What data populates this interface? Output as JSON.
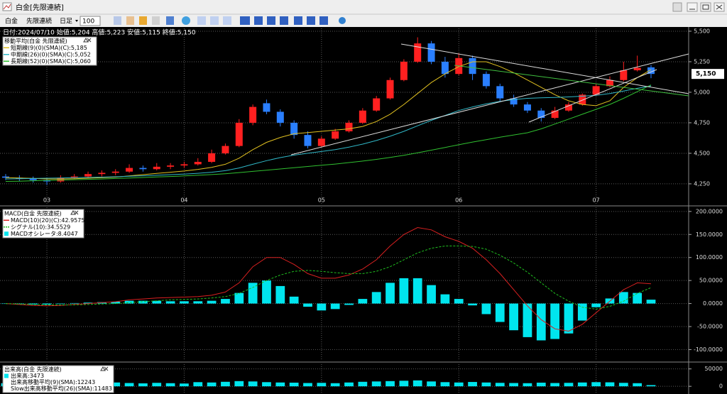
{
  "window": {
    "title": "白金[先限連続]"
  },
  "toolbar": {
    "symbol": "白金",
    "contract": "先限連続",
    "period": "日足",
    "count": "100"
  },
  "chart_data": [
    {
      "type": "candlestick",
      "header": "日付:2024/07/10 始値:5,204 高値:5,223 安値:5,115 終値:5,150",
      "title": "移動平均(白金 先限連続)",
      "categories": [
        null,
        null,
        null,
        "03",
        null,
        null,
        null,
        null,
        null,
        null,
        null,
        null,
        null,
        "04",
        null,
        null,
        null,
        null,
        null,
        null,
        null,
        null,
        null,
        "05",
        null,
        null,
        null,
        null,
        null,
        null,
        null,
        null,
        null,
        "06",
        null,
        null,
        null,
        null,
        null,
        null,
        null,
        null,
        null,
        "07",
        null,
        null,
        null,
        null
      ],
      "candles": [
        [
          4310,
          4330,
          4280,
          4300
        ],
        [
          4300,
          4320,
          4270,
          4290
        ],
        [
          4290,
          4310,
          4260,
          4280
        ],
        [
          4280,
          4300,
          4240,
          4270
        ],
        [
          4270,
          4320,
          4260,
          4300
        ],
        [
          4300,
          4330,
          4290,
          4310
        ],
        [
          4310,
          4350,
          4300,
          4330
        ],
        [
          4330,
          4360,
          4310,
          4340
        ],
        [
          4340,
          4370,
          4320,
          4350
        ],
        [
          4350,
          4410,
          4340,
          4380
        ],
        [
          4380,
          4400,
          4350,
          4370
        ],
        [
          4370,
          4420,
          4360,
          4390
        ],
        [
          4390,
          4420,
          4370,
          4400
        ],
        [
          4400,
          4430,
          4380,
          4410
        ],
        [
          4410,
          4460,
          4400,
          4430
        ],
        [
          4430,
          4530,
          4420,
          4500
        ],
        [
          4500,
          4580,
          4490,
          4560
        ],
        [
          4560,
          4780,
          4550,
          4750
        ],
        [
          4750,
          4900,
          4730,
          4880
        ],
        [
          4910,
          4940,
          4820,
          4840
        ],
        [
          4840,
          4860,
          4720,
          4750
        ],
        [
          4750,
          4770,
          4620,
          4650
        ],
        [
          4650,
          4680,
          4540,
          4560
        ],
        [
          4560,
          4640,
          4550,
          4620
        ],
        [
          4620,
          4700,
          4610,
          4680
        ],
        [
          4680,
          4770,
          4670,
          4750
        ],
        [
          4750,
          4870,
          4740,
          4850
        ],
        [
          4850,
          4970,
          4840,
          4950
        ],
        [
          4950,
          5120,
          4940,
          5100
        ],
        [
          5100,
          5270,
          5090,
          5250
        ],
        [
          5250,
          5450,
          5240,
          5400
        ],
        [
          5400,
          5420,
          5230,
          5250
        ],
        [
          5250,
          5290,
          5120,
          5150
        ],
        [
          5150,
          5320,
          5140,
          5280
        ],
        [
          5280,
          5300,
          5100,
          5150
        ],
        [
          5150,
          5170,
          5030,
          5050
        ],
        [
          5050,
          5070,
          4930,
          4950
        ],
        [
          4950,
          4980,
          4880,
          4900
        ],
        [
          4900,
          4920,
          4830,
          4850
        ],
        [
          4850,
          4870,
          4760,
          4790
        ],
        [
          4790,
          4880,
          4780,
          4850
        ],
        [
          4850,
          4920,
          4840,
          4900
        ],
        [
          4900,
          4990,
          4890,
          4980
        ],
        [
          4980,
          5070,
          4970,
          5050
        ],
        [
          5050,
          5130,
          5040,
          5100
        ],
        [
          5100,
          5250,
          5090,
          5180
        ],
        [
          5180,
          5300,
          5170,
          5200
        ],
        [
          5204,
          5223,
          5115,
          5150
        ]
      ],
      "up_color": "#ff2020",
      "down_color": "#2a7fff",
      "series": [
        {
          "name": "短期線(9)(0)(SMA)(C):5,185",
          "color": "#e0c020",
          "values": [
            4300,
            4298,
            4295,
            4290,
            4290,
            4292,
            4296,
            4300,
            4305,
            4315,
            4325,
            4335,
            4345,
            4355,
            4368,
            4385,
            4410,
            4460,
            4530,
            4590,
            4630,
            4660,
            4670,
            4680,
            4690,
            4700,
            4720,
            4760,
            4820,
            4900,
            4990,
            5080,
            5150,
            5210,
            5250,
            5250,
            5210,
            5160,
            5100,
            5040,
            4980,
            4930,
            4900,
            4890,
            4930,
            5040,
            5120,
            5185
          ]
        },
        {
          "name": "中期線(26)(0)(SMA)(C):5,052",
          "color": "#30b8c8",
          "values": [
            4290,
            4292,
            4294,
            4296,
            4298,
            4300,
            4302,
            4305,
            4308,
            4312,
            4316,
            4320,
            4325,
            4330,
            4336,
            4345,
            4358,
            4380,
            4410,
            4440,
            4465,
            4485,
            4500,
            4515,
            4530,
            4550,
            4575,
            4605,
            4640,
            4680,
            4725,
            4770,
            4810,
            4850,
            4880,
            4905,
            4925,
            4940,
            4950,
            4955,
            4958,
            4962,
            4968,
            4975,
            4990,
            5010,
            5032,
            5052
          ]
        },
        {
          "name": "長期線(52)(0)(SMA)(C):5,060",
          "color": "#30c030",
          "values": [
            4270,
            4272,
            4275,
            4278,
            4281,
            4284,
            4287,
            4290,
            4294,
            4298,
            4302,
            4306,
            4310,
            4315,
            4320,
            4326,
            4333,
            4342,
            4352,
            4362,
            4372,
            4382,
            4392,
            4402,
            4412,
            4424,
            4436,
            4450,
            4466,
            4484,
            4504,
            4526,
            4548,
            4570,
            4592,
            4612,
            4632,
            4650,
            4668,
            4700,
            4740,
            4780,
            4820,
            4860,
            4900,
            4950,
            5005,
            5060
          ]
        }
      ],
      "ylim": [
        4081,
        5523
      ],
      "yticks": [
        {
          "value": 5500,
          "label": "5,500"
        },
        {
          "value": 5250,
          "label": "5,250"
        },
        {
          "value": 5000,
          "label": "5,000"
        },
        {
          "value": 4750,
          "label": "4,750"
        },
        {
          "value": 4500,
          "label": "4,500"
        },
        {
          "value": 4250,
          "label": "4,250"
        }
      ],
      "last_price": {
        "value": 5150,
        "label": "5,150"
      },
      "grid": true
    },
    {
      "type": "macd",
      "title": "MACD(白金 先限連続)",
      "series": [
        {
          "name": "MACD(10)(20)(C):42.9575",
          "color": "#d82020",
          "style": "line",
          "values": [
            0,
            -2,
            -4,
            -5,
            -4,
            -2,
            0,
            2,
            4,
            8,
            10,
            12,
            13,
            14,
            15,
            18,
            25,
            45,
            80,
            100,
            100,
            85,
            65,
            55,
            55,
            62,
            75,
            95,
            125,
            150,
            165,
            160,
            145,
            135,
            120,
            95,
            65,
            30,
            -5,
            -35,
            -55,
            -60,
            -45,
            -20,
            5,
            30,
            45,
            42.9575
          ]
        },
        {
          "name": "シグナル(10):34.5529",
          "color": "#20c020",
          "style": "dashed",
          "values": [
            0,
            -1,
            -2,
            -3,
            -3,
            -3,
            -2,
            -1,
            0,
            2,
            4,
            6,
            8,
            9,
            10,
            12,
            15,
            22,
            35,
            50,
            62,
            70,
            72,
            70,
            67,
            65,
            65,
            70,
            80,
            95,
            110,
            120,
            125,
            125,
            124,
            118,
            105,
            88,
            68,
            45,
            22,
            5,
            -8,
            -12,
            -6,
            5,
            22,
            34.5529
          ]
        },
        {
          "name": "MACDオシレータ:8.4047",
          "color": "#00e5ee",
          "style": "histogram",
          "values": [
            0,
            -1,
            -2,
            -2,
            -1,
            1,
            2,
            3,
            4,
            6,
            6,
            6,
            5,
            5,
            5,
            6,
            10,
            23,
            45,
            50,
            38,
            15,
            -7,
            -15,
            -12,
            -3,
            10,
            25,
            45,
            55,
            55,
            40,
            20,
            10,
            -4,
            -23,
            -40,
            -58,
            -73,
            -80,
            -77,
            -65,
            -37,
            -8,
            11,
            25,
            23,
            8.4047
          ]
        }
      ],
      "ylim": [
        -124,
        209
      ],
      "yticks": [
        {
          "value": 200,
          "label": "200.0000"
        },
        {
          "value": 150,
          "label": "150.0000"
        },
        {
          "value": 100,
          "label": "100.0000"
        },
        {
          "value": 50,
          "label": "50.0000"
        },
        {
          "value": 0,
          "label": "0.0000"
        },
        {
          "value": -50,
          "label": "-50.0000"
        },
        {
          "value": -100,
          "label": "-100.0000"
        }
      ],
      "grid": true
    },
    {
      "type": "volume",
      "title": "出来高(白金 先限連続)",
      "series": [
        {
          "name": "出来高:3473",
          "color": "#00e5ee",
          "values": [
            9000,
            8000,
            7500,
            8500,
            9500,
            10000,
            8000,
            9000,
            11000,
            9500,
            8500,
            10000,
            9000,
            8000,
            12000,
            11000,
            13000,
            15000,
            14000,
            12000,
            11000,
            10500,
            9500,
            10000,
            9000,
            11000,
            13000,
            14000,
            15000,
            16000,
            17000,
            14000,
            12000,
            11000,
            12500,
            11000,
            10000,
            9500,
            9000,
            10500,
            9500,
            10000,
            11000,
            12000,
            11500,
            10000,
            9000,
            3473
          ]
        }
      ],
      "legend_items": [
        "出来高移動平均(9)(SMA):12243",
        "Slow出来高移動平均(26)(SMA):11483"
      ],
      "ylim": [
        -18000,
        63600
      ],
      "yticks": [
        50000,
        0
      ],
      "grid": true
    }
  ]
}
